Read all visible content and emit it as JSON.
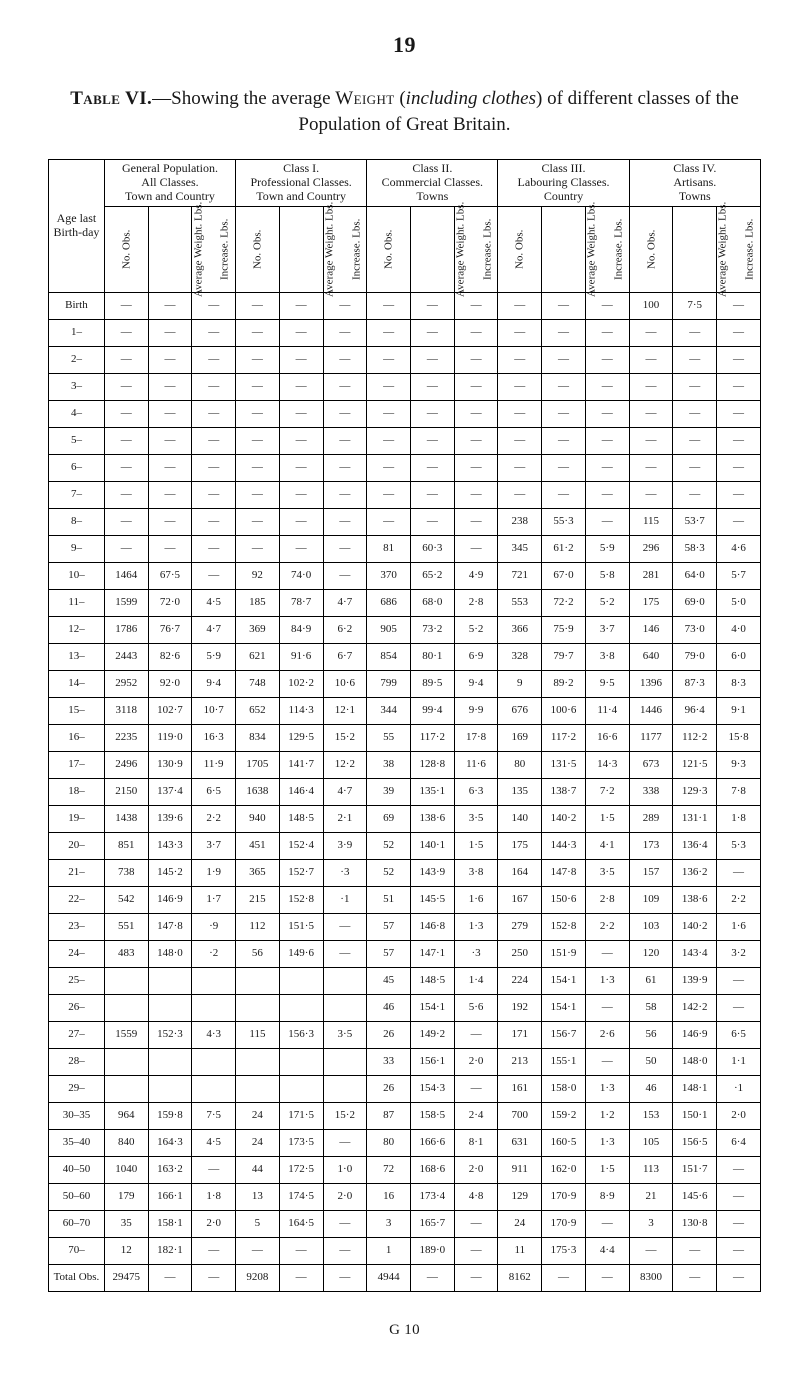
{
  "page_number": "19",
  "caption_lead": "Table VI.",
  "caption_rest_1": "—Showing the average ",
  "caption_weight": "Weight",
  "caption_rest_2": " (",
  "caption_ital": "including clothes",
  "caption_rest_3": ") of different classes of the Population of Great Britain.",
  "age_header_1": "Age last Birth-day",
  "groups": [
    {
      "title_1": "General Population.",
      "title_2": "All Classes.",
      "title_3": "Town and Country"
    },
    {
      "title_1": "Class I.",
      "title_2": "Professional Classes.",
      "title_3": "Town and Country"
    },
    {
      "title_1": "Class II.",
      "title_2": "Commercial Classes.",
      "title_3": "Towns"
    },
    {
      "title_1": "Class III.",
      "title_2": "Labouring Classes.",
      "title_3": "Country"
    },
    {
      "title_1": "Class IV.",
      "title_2": "Artisans.",
      "title_3": "Towns"
    }
  ],
  "subcols": [
    "No. Obs.",
    "Average Weight. Lbs.",
    "Increase. Lbs."
  ],
  "rows": [
    {
      "age": "Birth",
      "c": [
        "—",
        "—",
        "—",
        "—",
        "—",
        "—",
        "—",
        "—",
        "—",
        "—",
        "—",
        "—",
        "100",
        "7·5",
        "—"
      ]
    },
    {
      "age": "1–",
      "c": [
        "—",
        "—",
        "—",
        "—",
        "—",
        "—",
        "—",
        "—",
        "—",
        "—",
        "—",
        "—",
        "—",
        "—",
        "—"
      ]
    },
    {
      "age": "2–",
      "c": [
        "—",
        "—",
        "—",
        "—",
        "—",
        "—",
        "—",
        "—",
        "—",
        "—",
        "—",
        "—",
        "—",
        "—",
        "—"
      ]
    },
    {
      "age": "3–",
      "c": [
        "—",
        "—",
        "—",
        "—",
        "—",
        "—",
        "—",
        "—",
        "—",
        "—",
        "—",
        "—",
        "—",
        "—",
        "—"
      ]
    },
    {
      "age": "4–",
      "c": [
        "—",
        "—",
        "—",
        "—",
        "—",
        "—",
        "—",
        "—",
        "—",
        "—",
        "—",
        "—",
        "—",
        "—",
        "—"
      ]
    },
    {
      "age": "5–",
      "c": [
        "—",
        "—",
        "—",
        "—",
        "—",
        "—",
        "—",
        "—",
        "—",
        "—",
        "—",
        "—",
        "—",
        "—",
        "—"
      ]
    },
    {
      "age": "6–",
      "c": [
        "—",
        "—",
        "—",
        "—",
        "—",
        "—",
        "—",
        "—",
        "—",
        "—",
        "—",
        "—",
        "—",
        "—",
        "—"
      ]
    },
    {
      "age": "7–",
      "c": [
        "—",
        "—",
        "—",
        "—",
        "—",
        "—",
        "—",
        "—",
        "—",
        "—",
        "—",
        "—",
        "—",
        "—",
        "—"
      ]
    },
    {
      "age": "8–",
      "c": [
        "—",
        "—",
        "—",
        "—",
        "—",
        "—",
        "—",
        "—",
        "—",
        "238",
        "55·3",
        "—",
        "115",
        "53·7",
        "—"
      ]
    },
    {
      "age": "9–",
      "c": [
        "—",
        "—",
        "—",
        "—",
        "—",
        "—",
        "81",
        "60·3",
        "—",
        "345",
        "61·2",
        "5·9",
        "296",
        "58·3",
        "4·6"
      ]
    },
    {
      "age": "10–",
      "c": [
        "1464",
        "67·5",
        "—",
        "92",
        "74·0",
        "—",
        "370",
        "65·2",
        "4·9",
        "721",
        "67·0",
        "5·8",
        "281",
        "64·0",
        "5·7"
      ]
    },
    {
      "age": "11–",
      "c": [
        "1599",
        "72·0",
        "4·5",
        "185",
        "78·7",
        "4·7",
        "686",
        "68·0",
        "2·8",
        "553",
        "72·2",
        "5·2",
        "175",
        "69·0",
        "5·0"
      ]
    },
    {
      "age": "12–",
      "c": [
        "1786",
        "76·7",
        "4·7",
        "369",
        "84·9",
        "6·2",
        "905",
        "73·2",
        "5·2",
        "366",
        "75·9",
        "3·7",
        "146",
        "73·0",
        "4·0"
      ]
    },
    {
      "age": "13–",
      "c": [
        "2443",
        "82·6",
        "5·9",
        "621",
        "91·6",
        "6·7",
        "854",
        "80·1",
        "6·9",
        "328",
        "79·7",
        "3·8",
        "640",
        "79·0",
        "6·0"
      ]
    },
    {
      "age": "14–",
      "c": [
        "2952",
        "92·0",
        "9·4",
        "748",
        "102·2",
        "10·6",
        "799",
        "89·5",
        "9·4",
        "9",
        "89·2",
        "9·5",
        "1396",
        "87·3",
        "8·3"
      ]
    },
    {
      "age": "15–",
      "c": [
        "3118",
        "102·7",
        "10·7",
        "652",
        "114·3",
        "12·1",
        "344",
        "99·4",
        "9·9",
        "676",
        "100·6",
        "11·4",
        "1446",
        "96·4",
        "9·1"
      ]
    },
    {
      "age": "16–",
      "c": [
        "2235",
        "119·0",
        "16·3",
        "834",
        "129·5",
        "15·2",
        "55",
        "117·2",
        "17·8",
        "169",
        "117·2",
        "16·6",
        "1177",
        "112·2",
        "15·8"
      ]
    },
    {
      "age": "17–",
      "c": [
        "2496",
        "130·9",
        "11·9",
        "1705",
        "141·7",
        "12·2",
        "38",
        "128·8",
        "11·6",
        "80",
        "131·5",
        "14·3",
        "673",
        "121·5",
        "9·3"
      ]
    },
    {
      "age": "18–",
      "c": [
        "2150",
        "137·4",
        "6·5",
        "1638",
        "146·4",
        "4·7",
        "39",
        "135·1",
        "6·3",
        "135",
        "138·7",
        "7·2",
        "338",
        "129·3",
        "7·8"
      ]
    },
    {
      "age": "19–",
      "c": [
        "1438",
        "139·6",
        "2·2",
        "940",
        "148·5",
        "2·1",
        "69",
        "138·6",
        "3·5",
        "140",
        "140·2",
        "1·5",
        "289",
        "131·1",
        "1·8"
      ]
    },
    {
      "age": "20–",
      "c": [
        "851",
        "143·3",
        "3·7",
        "451",
        "152·4",
        "3·9",
        "52",
        "140·1",
        "1·5",
        "175",
        "144·3",
        "4·1",
        "173",
        "136·4",
        "5·3"
      ]
    },
    {
      "age": "21–",
      "c": [
        "738",
        "145·2",
        "1·9",
        "365",
        "152·7",
        "·3",
        "52",
        "143·9",
        "3·8",
        "164",
        "147·8",
        "3·5",
        "157",
        "136·2",
        "—"
      ]
    },
    {
      "age": "22–",
      "c": [
        "542",
        "146·9",
        "1·7",
        "215",
        "152·8",
        "·1",
        "51",
        "145·5",
        "1·6",
        "167",
        "150·6",
        "2·8",
        "109",
        "138·6",
        "2·2"
      ]
    },
    {
      "age": "23–",
      "c": [
        "551",
        "147·8",
        "·9",
        "112",
        "151·5",
        "—",
        "57",
        "146·8",
        "1·3",
        "279",
        "152·8",
        "2·2",
        "103",
        "140·2",
        "1·6"
      ]
    },
    {
      "age": "24–",
      "c": [
        "483",
        "148·0",
        "·2",
        "56",
        "149·6",
        "—",
        "57",
        "147·1",
        "·3",
        "250",
        "151·9",
        "—",
        "120",
        "143·4",
        "3·2"
      ]
    },
    {
      "age": "25–",
      "c": [
        "",
        "",
        "",
        "",
        "",
        "",
        "45",
        "148·5",
        "1·4",
        "224",
        "154·1",
        "1·3",
        "61",
        "139·9",
        "—"
      ]
    },
    {
      "age": "26–",
      "c": [
        "",
        "",
        "",
        "",
        "",
        "",
        "46",
        "154·1",
        "5·6",
        "192",
        "154·1",
        "—",
        "58",
        "142·2",
        "—"
      ]
    },
    {
      "age": "27–",
      "c": [
        "1559",
        "152·3",
        "4·3",
        "115",
        "156·3",
        "3·5",
        "26",
        "149·2",
        "—",
        "171",
        "156·7",
        "2·6",
        "56",
        "146·9",
        "6·5"
      ]
    },
    {
      "age": "28–",
      "c": [
        "",
        "",
        "",
        "",
        "",
        "",
        "33",
        "156·1",
        "2·0",
        "213",
        "155·1",
        "—",
        "50",
        "148·0",
        "1·1"
      ]
    },
    {
      "age": "29–",
      "c": [
        "",
        "",
        "",
        "",
        "",
        "",
        "26",
        "154·3",
        "—",
        "161",
        "158·0",
        "1·3",
        "46",
        "148·1",
        "·1"
      ]
    },
    {
      "age": "30–35",
      "c": [
        "964",
        "159·8",
        "7·5",
        "24",
        "171·5",
        "15·2",
        "87",
        "158·5",
        "2·4",
        "700",
        "159·2",
        "1·2",
        "153",
        "150·1",
        "2·0"
      ]
    },
    {
      "age": "35–40",
      "c": [
        "840",
        "164·3",
        "4·5",
        "24",
        "173·5",
        "—",
        "80",
        "166·6",
        "8·1",
        "631",
        "160·5",
        "1·3",
        "105",
        "156·5",
        "6·4"
      ]
    },
    {
      "age": "40–50",
      "c": [
        "1040",
        "163·2",
        "—",
        "44",
        "172·5",
        "1·0",
        "72",
        "168·6",
        "2·0",
        "911",
        "162·0",
        "1·5",
        "113",
        "151·7",
        "—"
      ]
    },
    {
      "age": "50–60",
      "c": [
        "179",
        "166·1",
        "1·8",
        "13",
        "174·5",
        "2·0",
        "16",
        "173·4",
        "4·8",
        "129",
        "170·9",
        "8·9",
        "21",
        "145·6",
        "—"
      ]
    },
    {
      "age": "60–70",
      "c": [
        "35",
        "158·1",
        "2·0",
        "5",
        "164·5",
        "—",
        "3",
        "165·7",
        "—",
        "24",
        "170·9",
        "—",
        "3",
        "130·8",
        "—"
      ]
    },
    {
      "age": "70–",
      "c": [
        "12",
        "182·1",
        "—",
        "—",
        "—",
        "—",
        "1",
        "189·0",
        "—",
        "11",
        "175·3",
        "4·4",
        "—",
        "—",
        "—"
      ]
    }
  ],
  "total_label": "Total Obs.",
  "total": [
    "29475",
    "—",
    "—",
    "9208",
    "—",
    "—",
    "4944",
    "—",
    "—",
    "8162",
    "—",
    "—",
    "8300",
    "—",
    "—"
  ],
  "footer": "G 10"
}
